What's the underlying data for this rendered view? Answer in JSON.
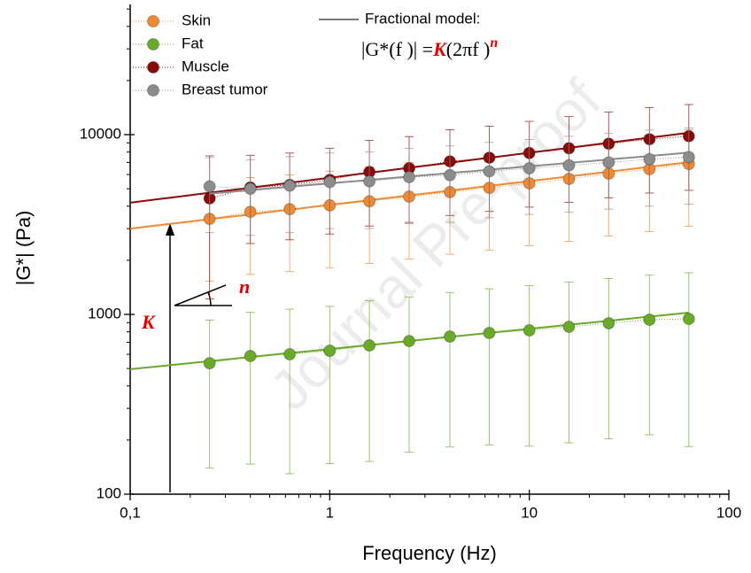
{
  "chart_data": {
    "type": "scatter",
    "x_label": "Frequency (Hz)",
    "y_label": "|G*| (Pa)",
    "log_x": true,
    "log_y": true,
    "xlim": [
      0.1,
      100
    ],
    "ylim": [
      100,
      53000
    ],
    "xticks": [
      {
        "value": 0.1,
        "label": "0,1"
      },
      1,
      10,
      100
    ],
    "yticks": [
      100,
      1000,
      10000
    ],
    "x": [
      0.25,
      0.4,
      0.63,
      1,
      1.58,
      2.5,
      4,
      6.3,
      10,
      15.8,
      25,
      40,
      63
    ],
    "series": [
      {
        "name": "Skin",
        "color": "#f08a32",
        "values": [
          3400,
          3720,
          3850,
          4040,
          4260,
          4520,
          4790,
          5060,
          5360,
          5670,
          6070,
          6420,
          6870
        ],
        "errors": [
          1870,
          2050,
          2120,
          2220,
          2340,
          2490,
          2630,
          2780,
          2950,
          3120,
          3340,
          3530,
          3780
        ],
        "fit": {
          "K": 3190,
          "n": 0.132,
          "xlim": [
            0.1,
            63
          ]
        }
      },
      {
        "name": "Fat",
        "color": "#6aaa2a",
        "values": [
          535,
          587,
          600,
          628,
          672,
          711,
          753,
          788,
          815,
          853,
          893,
          934,
          944
        ],
        "errors": [
          395,
          440,
          470,
          480,
          520,
          540,
          570,
          600,
          630,
          660,
          690,
          720,
          760
        ],
        "fit": {
          "K": 522,
          "n": 0.1125,
          "xlim": [
            0.1,
            63
          ]
        }
      },
      {
        "name": "Muscle",
        "color": "#8b0a0a",
        "values": [
          4420,
          5080,
          5250,
          5600,
          6200,
          6500,
          7100,
          7440,
          7900,
          8400,
          8900,
          9430,
          9800
        ],
        "errors": [
          3200,
          2600,
          2650,
          2800,
          3100,
          3250,
          3550,
          3700,
          3950,
          4200,
          4450,
          4700,
          4900
        ],
        "fit": {
          "K": 4460,
          "n": 0.139,
          "xlim": [
            0.1,
            63
          ]
        }
      },
      {
        "name": "Breast tumor",
        "color": "#8c8c8c",
        "values": [
          5150,
          5000,
          5200,
          5450,
          5500,
          5800,
          5950,
          6250,
          6500,
          6750,
          7000,
          7300,
          7500
        ],
        "errors": [
          2300,
          2250,
          2350,
          2450,
          2500,
          2600,
          2700,
          2800,
          2900,
          3050,
          3150,
          3300,
          3400
        ],
        "fit": {
          "K": 4500,
          "n": 0.095,
          "xlim": [
            0.25,
            63
          ]
        }
      }
    ],
    "model_label": "Fractional model:",
    "model_color": "#777777",
    "formula": {
      "lhs": "|G*(f )| =",
      "K": "K",
      "base": "(2πf )",
      "n": "n"
    },
    "annotations": {
      "K": "K",
      "n": "n"
    },
    "watermark": "Journal Pre-proof"
  }
}
